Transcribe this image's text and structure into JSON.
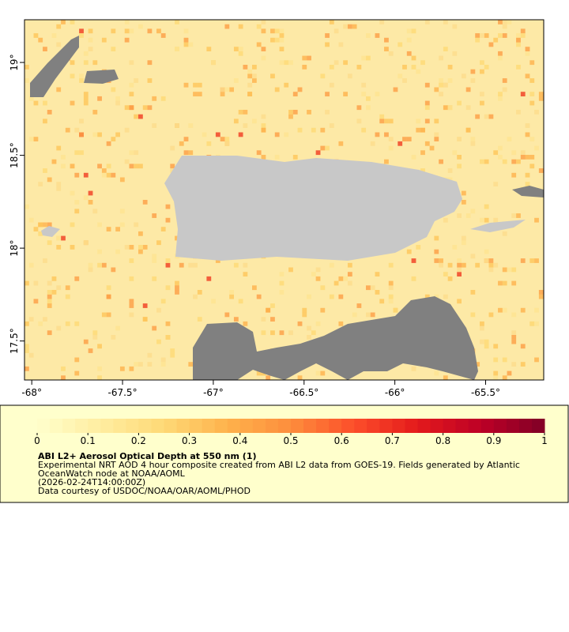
{
  "map": {
    "xlim": [
      -68.04,
      -65.18
    ],
    "ylim": [
      17.29,
      19.23
    ],
    "xticks": [
      {
        "value": -68,
        "label": "-68°"
      },
      {
        "value": -67.5,
        "label": "-67.5°"
      },
      {
        "value": -67,
        "label": "-67°"
      },
      {
        "value": -66.5,
        "label": "-66.5°"
      },
      {
        "value": -66,
        "label": "-66°"
      },
      {
        "value": -65.5,
        "label": "-65.5°"
      }
    ],
    "yticks": [
      {
        "value": 17.5,
        "label": "17.5°"
      },
      {
        "value": 18,
        "label": "18°"
      },
      {
        "value": 18.5,
        "label": "18.5°"
      },
      {
        "value": 19,
        "label": "19°"
      }
    ]
  },
  "colorbar": {
    "lim": [
      0,
      1
    ],
    "ticks": [
      0,
      0.1,
      0.2,
      0.3,
      0.4,
      0.5,
      0.6,
      0.7,
      0.8,
      0.9,
      1
    ],
    "colors": [
      "#ffffcc",
      "#ffeda0",
      "#fed976",
      "#feb24c",
      "#fd8d3c",
      "#fc4e2a",
      "#e31a1c",
      "#bd0026",
      "#800026"
    ]
  },
  "caption": {
    "title": "ABI L2+ Aerosol Optical Depth at 550 nm (1)",
    "lines": [
      "Experimental NRT AOD 4 hour composite created from ABI L2 data from GOES-19. Fields generated by Atlantic",
      "OceanWatch node at NOAA/AOML",
      "(2026-02-24T14:00:00Z)",
      "Data courtesy of USDOC/NOAA/OAR/AOML/PHOD"
    ]
  }
}
